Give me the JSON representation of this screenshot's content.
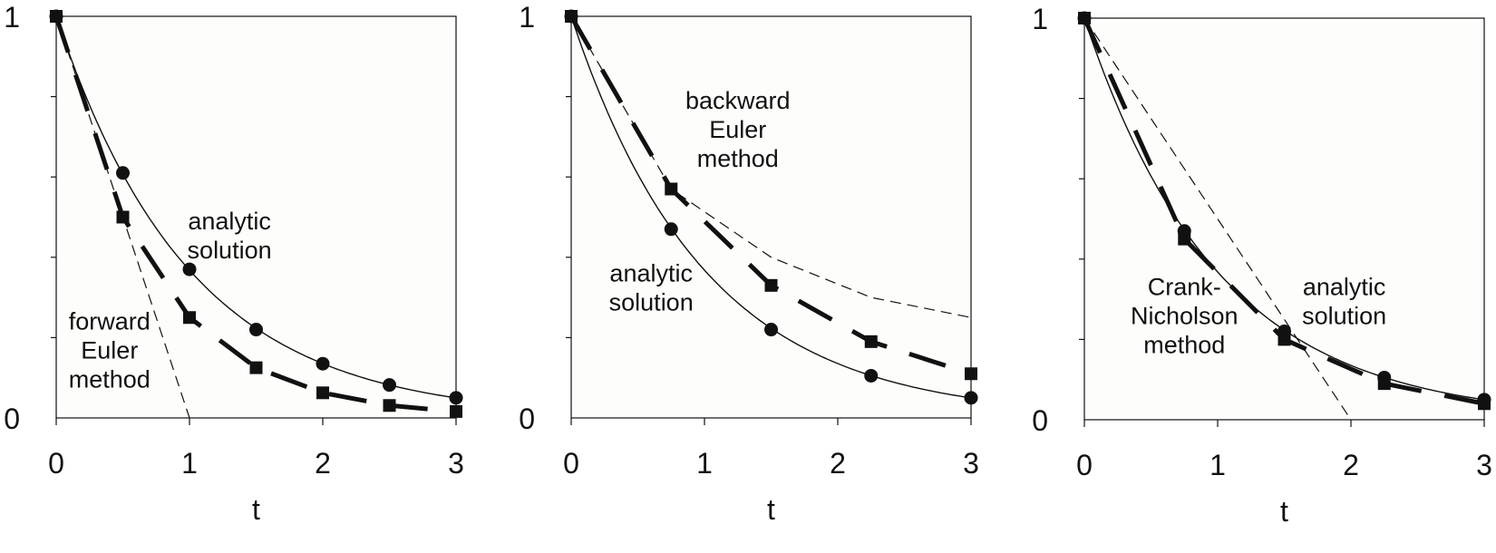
{
  "colors": {
    "background": "#ffffff",
    "plot_background": "#fdfdfb",
    "ink": "#111111"
  },
  "chart_data": [
    {
      "type": "line",
      "xlabel": "t",
      "ylabel": "",
      "xlim": [
        0,
        3
      ],
      "ylim": [
        0,
        1
      ],
      "x_ticks": [
        "0",
        "1",
        "2",
        "3"
      ],
      "y_tick_labels": [
        "0",
        "1"
      ],
      "y_minor_ticks": [
        0.2,
        0.4,
        0.6,
        0.8
      ],
      "grid": false,
      "annotations": [
        {
          "lines": [
            "analytic",
            "solution"
          ],
          "at": [
            1.3,
            0.47
          ]
        },
        {
          "lines": [
            "forward",
            "Euler",
            "method"
          ],
          "at": [
            0.4,
            0.22
          ]
        }
      ],
      "series": [
        {
          "style": "solid-circles",
          "x": [
            0,
            0.5,
            1.0,
            1.5,
            2.0,
            2.5,
            3.0
          ],
          "y": [
            1.0,
            0.61,
            0.37,
            0.22,
            0.135,
            0.082,
            0.05
          ]
        },
        {
          "style": "thick-dashed-squares",
          "x": [
            0,
            0.5,
            1.0,
            1.5,
            2.0,
            2.5,
            3.0
          ],
          "y": [
            1.0,
            0.5,
            0.25,
            0.125,
            0.0625,
            0.031,
            0.016
          ]
        },
        {
          "style": "thin-dashed",
          "x": [
            0,
            1.0
          ],
          "y": [
            1.0,
            0.0
          ]
        }
      ]
    },
    {
      "type": "line",
      "xlabel": "t",
      "ylabel": "",
      "xlim": [
        0,
        3
      ],
      "ylim": [
        0,
        1
      ],
      "x_ticks": [
        "0",
        "1",
        "2",
        "3"
      ],
      "y_tick_labels": [
        "0",
        "1"
      ],
      "y_minor_ticks": [
        0.2,
        0.4,
        0.6,
        0.8
      ],
      "grid": false,
      "annotations": [
        {
          "lines": [
            "backward",
            "Euler",
            "method"
          ],
          "at": [
            1.25,
            0.77
          ]
        },
        {
          "lines": [
            "analytic",
            "solution"
          ],
          "at": [
            0.6,
            0.34
          ]
        }
      ],
      "series": [
        {
          "style": "solid-circles",
          "x": [
            0,
            0.75,
            1.5,
            2.25,
            3.0
          ],
          "y": [
            1.0,
            0.47,
            0.22,
            0.105,
            0.05
          ]
        },
        {
          "style": "thick-dashed-squares",
          "x": [
            0,
            0.75,
            1.5,
            2.25,
            3.0
          ],
          "y": [
            1.0,
            0.57,
            0.33,
            0.19,
            0.11
          ]
        },
        {
          "style": "thin-dashed",
          "x": [
            0,
            0.75,
            1.5,
            2.25,
            3.0
          ],
          "y": [
            1.0,
            0.57,
            0.4,
            0.3,
            0.25
          ]
        }
      ]
    },
    {
      "type": "line",
      "xlabel": "t",
      "ylabel": "",
      "xlim": [
        0,
        3
      ],
      "ylim": [
        0,
        1
      ],
      "x_ticks": [
        "0",
        "1",
        "2",
        "3"
      ],
      "y_tick_labels": [
        "0",
        "1"
      ],
      "y_minor_ticks": [
        0.2,
        0.4,
        0.6,
        0.8
      ],
      "grid": false,
      "annotations": [
        {
          "lines": [
            "Crank-",
            "Nicholson",
            "method"
          ],
          "at": [
            0.75,
            0.31
          ]
        },
        {
          "lines": [
            "analytic",
            "solution"
          ],
          "at": [
            1.95,
            0.31
          ]
        }
      ],
      "series": [
        {
          "style": "solid-circles",
          "x": [
            0,
            0.75,
            1.5,
            2.25,
            3.0
          ],
          "y": [
            1.0,
            0.47,
            0.22,
            0.105,
            0.05
          ]
        },
        {
          "style": "thick-dashed-squares",
          "x": [
            0,
            0.75,
            1.5,
            2.25,
            3.0
          ],
          "y": [
            1.0,
            0.45,
            0.2,
            0.09,
            0.04
          ]
        },
        {
          "style": "thin-dashed",
          "x": [
            0,
            2.0
          ],
          "y": [
            1.0,
            0.0
          ]
        }
      ]
    }
  ]
}
